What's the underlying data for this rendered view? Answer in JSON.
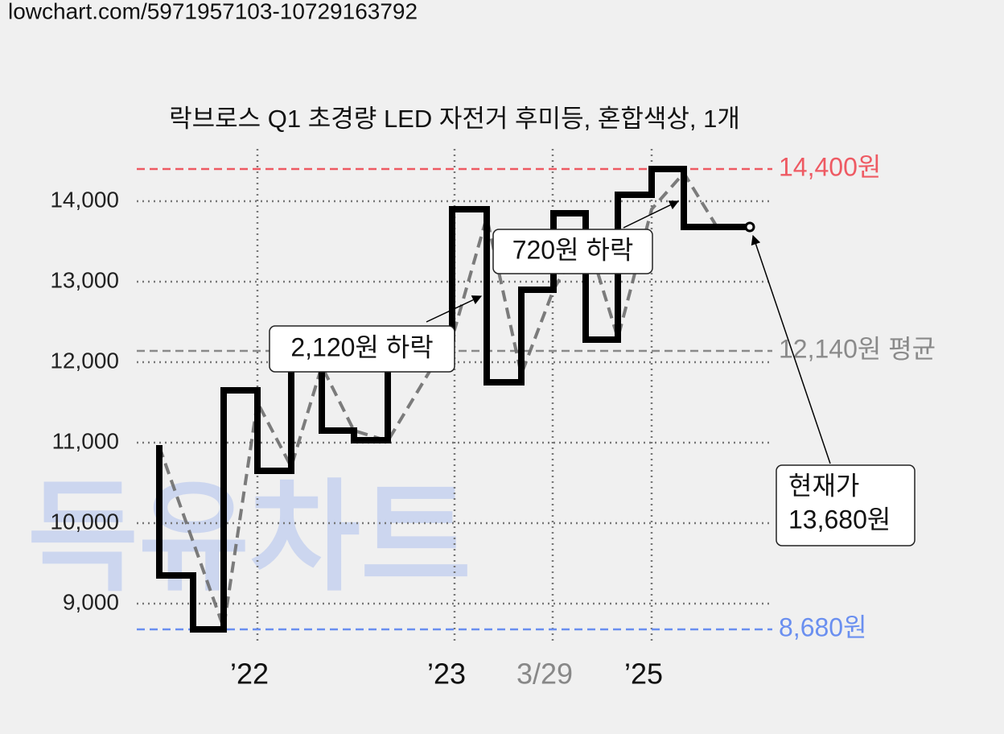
{
  "header": {
    "url": "lowchart.com/5971957103-10729163792"
  },
  "chart_data": {
    "type": "line",
    "title": "락브로스 Q1 초경량 LED 자전거 후미등, 혼합색상, 1개",
    "watermark": "득유차트",
    "xlim": [
      0,
      158
    ],
    "xticks": [
      {
        "value": 30,
        "label": "’22"
      },
      {
        "value": 79,
        "label": "’23"
      },
      {
        "value": 103.4,
        "label": "3/29"
      },
      {
        "value": 128,
        "label": "’25"
      }
    ],
    "ylim": [
      8500,
      14650
    ],
    "yticks": [
      {
        "value": 9000,
        "label": "9,000"
      },
      {
        "value": 10000,
        "label": "10,000"
      },
      {
        "value": 11000,
        "label": "11,000"
      },
      {
        "value": 12000,
        "label": "12,000"
      },
      {
        "value": 13000,
        "label": "13,000"
      },
      {
        "value": 14000,
        "label": "14,000"
      }
    ],
    "grid": true,
    "series": [
      {
        "style": "step",
        "color": "#000000",
        "x": [
          5.6,
          5.6,
          14,
          21.6,
          30,
          38.4,
          46,
          54,
          62.4,
          78.4,
          87,
          95.6,
          103.6,
          111.6,
          119.6,
          128,
          136,
          152.4
        ],
        "values": [
          10930,
          9350,
          8680,
          11650,
          10650,
          12000,
          11150,
          11030,
          12300,
          13900,
          11750,
          12900,
          13850,
          12280,
          14080,
          14400,
          13680,
          13680
        ]
      },
      {
        "style": "dashed",
        "color": "#6e6e6e",
        "x": [
          5.6,
          21.6,
          30,
          38.4,
          46,
          54,
          62.4,
          79,
          87,
          95.6,
          103.6,
          111.6,
          119.6,
          128,
          136,
          144,
          152.4
        ],
        "values": [
          10950,
          8700,
          11500,
          10700,
          11950,
          11150,
          11020,
          12400,
          13800,
          11850,
          12900,
          13600,
          12300,
          13900,
          14350,
          13700,
          13680
        ]
      }
    ],
    "reference_lines": [
      {
        "value": 14400,
        "label": "14,400원",
        "color": "#ee5a63"
      },
      {
        "value": 12140,
        "label": "12,140원 평균",
        "color": "#8a8a8a"
      },
      {
        "value": 8680,
        "label": "8,680원",
        "color": "#6a8ff0"
      }
    ],
    "annotations": {
      "drop1": "2,120원 하락",
      "drop2": "720원 하락",
      "current_title": "현재가",
      "current_value": "13,680원"
    }
  }
}
